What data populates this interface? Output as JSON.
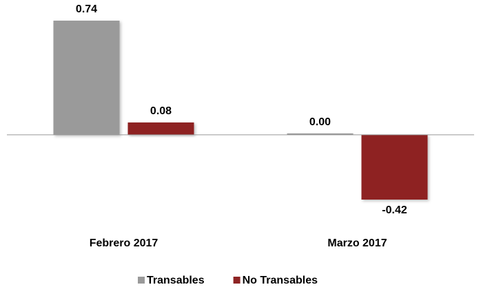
{
  "chart_data": {
    "type": "bar",
    "categories": [
      "Febrero 2017",
      "Marzo 2017"
    ],
    "series": [
      {
        "name": "Transables",
        "color": "#9a9a9a",
        "values": [
          0.74,
          0.0
        ]
      },
      {
        "name": "No Transables",
        "color": "#8e2424",
        "values": [
          0.08,
          -0.42
        ]
      }
    ],
    "value_labels": [
      [
        "0.74",
        "0.00"
      ],
      [
        "0.08",
        "-0.42"
      ]
    ],
    "legend": "bottom"
  }
}
